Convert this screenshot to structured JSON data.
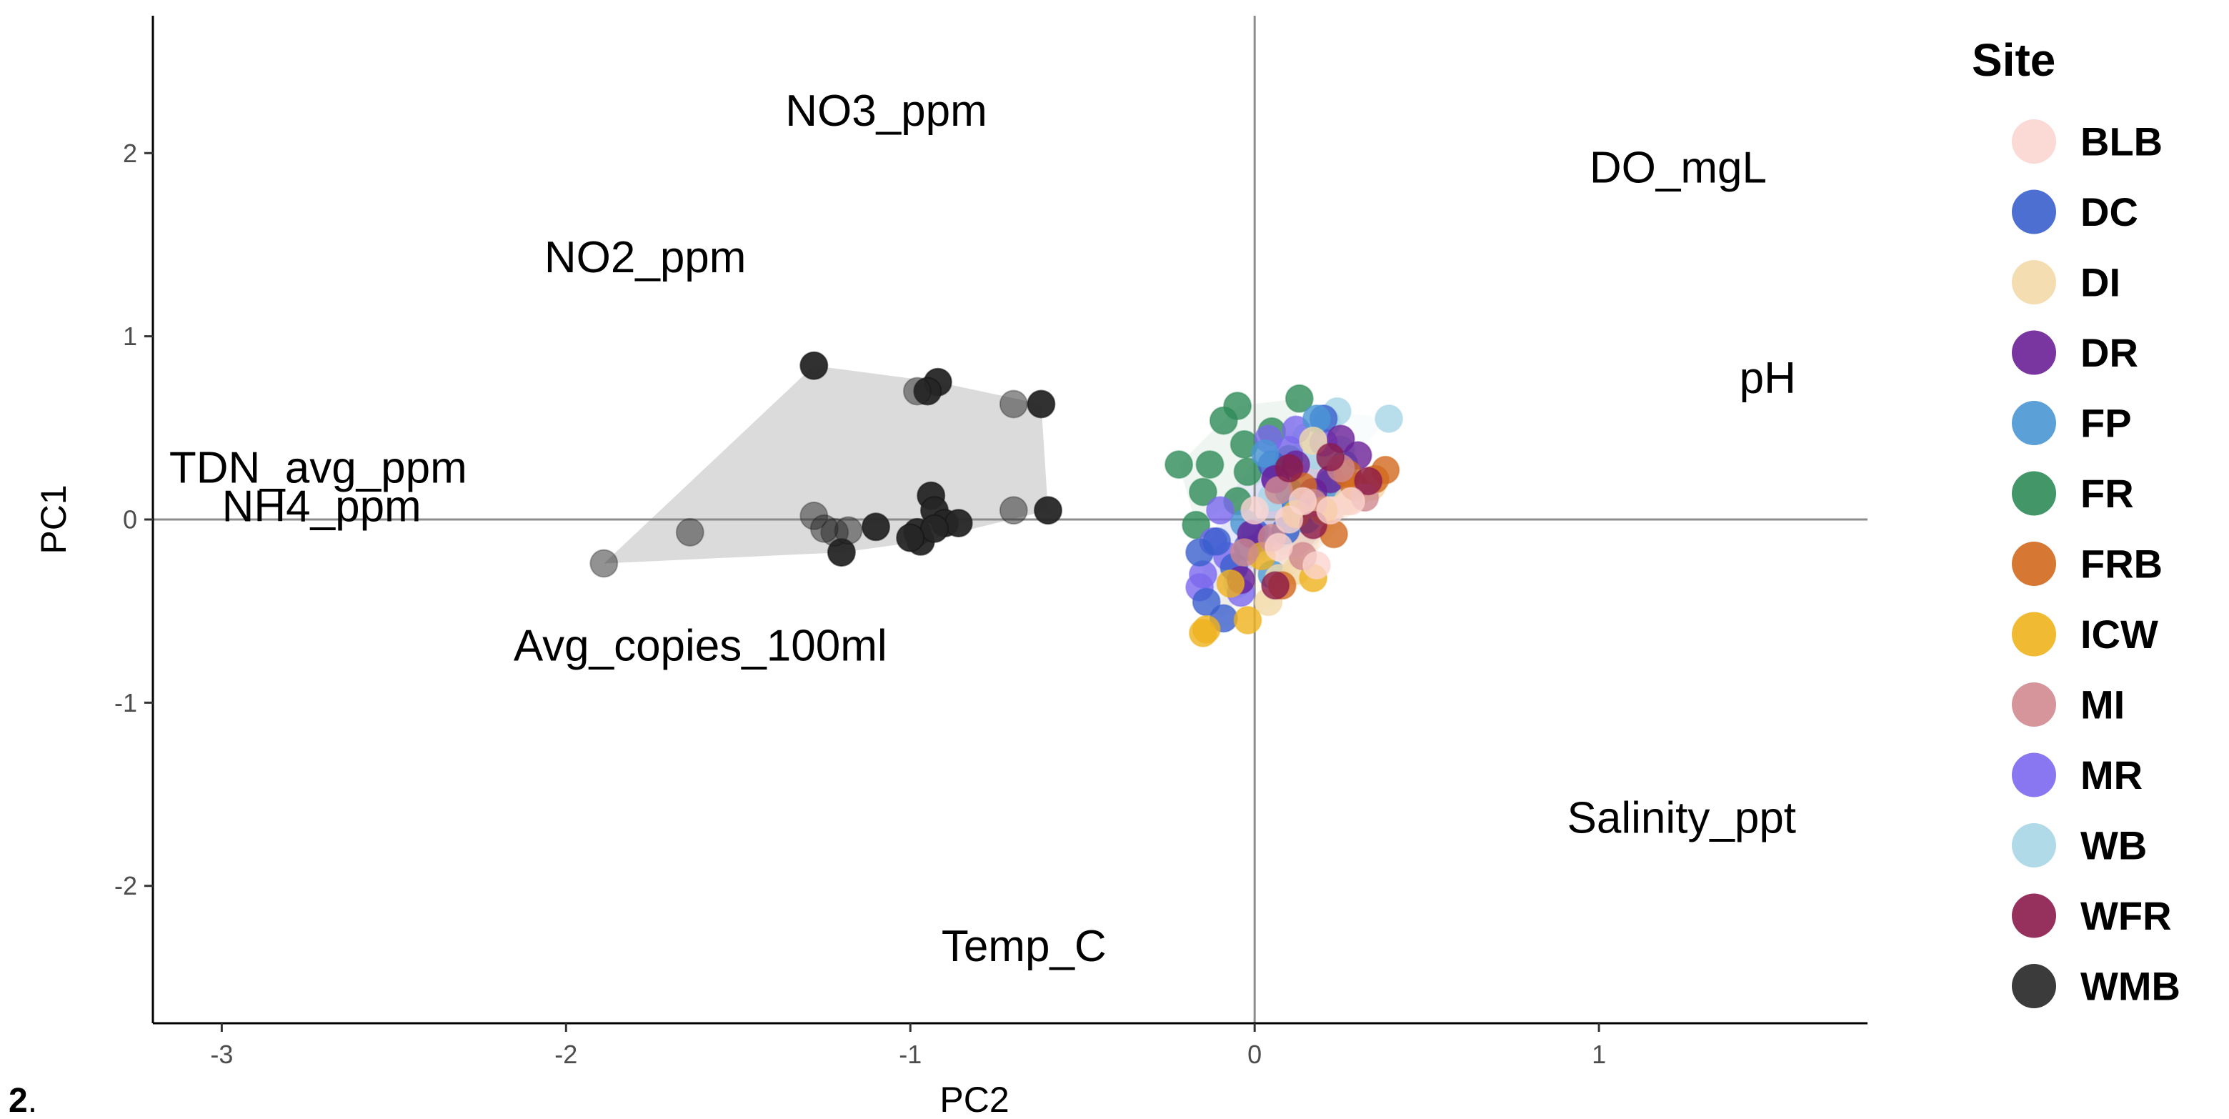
{
  "panel_label_bold": "2",
  "panel_label_rest": ".",
  "chart_data": {
    "type": "scatter",
    "xlabel": "PC2",
    "ylabel": "PC1",
    "xlim": [
      -3.2,
      1.78
    ],
    "ylim": [
      -2.75,
      2.75
    ],
    "xticks": [
      -3,
      -2,
      -1,
      0,
      1
    ],
    "yticks": [
      -2,
      -1,
      0,
      1,
      2
    ],
    "reference_lines": {
      "x": 0,
      "y": 0
    },
    "grid": false,
    "legend": {
      "title": "Site",
      "position": "right",
      "entries": [
        "BLB",
        "DC",
        "DI",
        "DR",
        "FP",
        "FR",
        "FRB",
        "ICW",
        "MI",
        "MR",
        "WB",
        "WFR",
        "WMB"
      ]
    },
    "colors": {
      "BLB": "#fbd5d0",
      "DC": "#3a5fcd",
      "DI": "#f3d9a8",
      "DR": "#6a1f96",
      "FP": "#4a96d4",
      "FR": "#2e8b57",
      "FRB": "#d2691e",
      "ICW": "#efb21d",
      "MI": "#d08a8f",
      "MR": "#7b68ee",
      "WB": "#a8d6e6",
      "WFR": "#8b1a4a",
      "WMB": "#262626"
    },
    "hull_color": "#bdbdbd",
    "variable_labels": [
      {
        "text": "NO3_ppm",
        "x": -1.07,
        "y": 2.23
      },
      {
        "text": "DO_mgL",
        "x": 1.23,
        "y": 1.92
      },
      {
        "text": "NO2_ppm",
        "x": -1.77,
        "y": 1.43
      },
      {
        "text": "pH",
        "x": 1.49,
        "y": 0.77
      },
      {
        "text": "TDN_avg_ppm",
        "x": -2.72,
        "y": 0.28
      },
      {
        "text": "NH4_ppm",
        "x": -2.71,
        "y": 0.07
      },
      {
        "text": "Avg_copies_100ml",
        "x": -1.61,
        "y": -0.69
      },
      {
        "text": "Salinity_ppt",
        "x": 1.24,
        "y": -1.63
      },
      {
        "text": "Temp_C",
        "x": -0.67,
        "y": -2.33
      }
    ],
    "series": [
      {
        "name": "WMB",
        "points": [
          [
            -1.28,
            0.84
          ],
          [
            -0.92,
            0.75
          ],
          [
            -0.95,
            0.7
          ],
          [
            -0.62,
            0.63
          ],
          [
            -0.94,
            0.13
          ],
          [
            -0.93,
            0.05
          ],
          [
            -1.1,
            -0.04
          ],
          [
            -0.98,
            -0.07
          ],
          [
            -0.97,
            -0.12
          ],
          [
            -0.9,
            -0.02
          ],
          [
            -0.86,
            -0.02
          ],
          [
            -1.2,
            -0.18
          ],
          [
            -0.6,
            0.05
          ],
          [
            -0.93,
            -0.05
          ],
          [
            -1.0,
            -0.1
          ]
        ]
      },
      {
        "name": "WMB",
        "opacity": 0.5,
        "points": [
          [
            -1.89,
            -0.24
          ],
          [
            -1.64,
            -0.07
          ],
          [
            -1.28,
            0.02
          ],
          [
            -1.22,
            -0.07
          ],
          [
            -1.18,
            -0.06
          ],
          [
            -0.7,
            0.63
          ],
          [
            -0.7,
            0.05
          ],
          [
            -0.98,
            0.7
          ],
          [
            -1.25,
            -0.05
          ]
        ]
      },
      {
        "name": "FR",
        "points": [
          [
            -0.22,
            0.3
          ],
          [
            -0.13,
            0.3
          ],
          [
            -0.09,
            0.54
          ],
          [
            -0.05,
            0.62
          ],
          [
            -0.03,
            0.41
          ],
          [
            0.13,
            0.66
          ],
          [
            -0.17,
            -0.03
          ],
          [
            -0.02,
            0.26
          ],
          [
            0.1,
            0.33
          ],
          [
            -0.15,
            0.15
          ],
          [
            -0.05,
            0.1
          ],
          [
            0.05,
            0.48
          ]
        ]
      },
      {
        "name": "WB",
        "points": [
          [
            0.39,
            0.55
          ],
          [
            0.24,
            0.59
          ],
          [
            0.21,
            0.53
          ],
          [
            0.15,
            0.45
          ],
          [
            0.05,
            0.12
          ],
          [
            0.1,
            0.2
          ],
          [
            -0.05,
            -0.35
          ],
          [
            0.18,
            0.35
          ],
          [
            0.08,
            -0.08
          ],
          [
            0.25,
            0.38
          ]
        ]
      },
      {
        "name": "MR",
        "points": [
          [
            0.12,
            0.49
          ],
          [
            0.04,
            0.44
          ],
          [
            0.1,
            0.38
          ],
          [
            -0.12,
            -0.12
          ],
          [
            -0.15,
            -0.3
          ],
          [
            -0.16,
            -0.37
          ],
          [
            -0.08,
            -0.2
          ],
          [
            0.02,
            -0.1
          ],
          [
            0.06,
            0.22
          ],
          [
            -0.1,
            0.05
          ],
          [
            0.16,
            0.06
          ],
          [
            0.2,
            0.42
          ],
          [
            -0.04,
            -0.4
          ]
        ]
      },
      {
        "name": "DC",
        "points": [
          [
            -0.16,
            -0.18
          ],
          [
            -0.11,
            -0.12
          ],
          [
            -0.09,
            -0.54
          ],
          [
            -0.06,
            -0.26
          ],
          [
            0.0,
            -0.07
          ],
          [
            0.05,
            0.3
          ],
          [
            0.09,
            -0.06
          ],
          [
            -0.02,
            -0.15
          ],
          [
            0.2,
            0.55
          ],
          [
            0.12,
            0.08
          ],
          [
            -0.14,
            -0.45
          ]
        ]
      },
      {
        "name": "FP",
        "points": [
          [
            0.03,
            0.36
          ],
          [
            0.1,
            0.15
          ],
          [
            0.22,
            0.2
          ],
          [
            -0.03,
            -0.02
          ],
          [
            0.15,
            0.0
          ],
          [
            0.26,
            0.3
          ],
          [
            0.05,
            -0.3
          ],
          [
            0.18,
            0.55
          ]
        ]
      },
      {
        "name": "DR",
        "points": [
          [
            0.25,
            0.44
          ],
          [
            0.22,
            0.22
          ],
          [
            0.06,
            0.22
          ],
          [
            -0.01,
            -0.08
          ],
          [
            -0.04,
            -0.33
          ],
          [
            0.17,
            0.15
          ],
          [
            0.12,
            0.3
          ],
          [
            0.3,
            0.35
          ]
        ]
      },
      {
        "name": "DI",
        "points": [
          [
            0.17,
            0.43
          ],
          [
            0.27,
            0.1
          ],
          [
            0.3,
            0.15
          ],
          [
            0.12,
            -0.28
          ],
          [
            0.07,
            -0.32
          ],
          [
            0.04,
            -0.45
          ],
          [
            0.2,
            0.04
          ],
          [
            0.34,
            0.18
          ]
        ]
      },
      {
        "name": "ICW",
        "points": [
          [
            -0.15,
            -0.62
          ],
          [
            -0.02,
            -0.55
          ],
          [
            0.12,
            0.03
          ],
          [
            0.17,
            -0.32
          ],
          [
            0.2,
            0.05
          ],
          [
            -0.07,
            -0.35
          ],
          [
            0.02,
            -0.2
          ],
          [
            -0.14,
            -0.6
          ]
        ]
      },
      {
        "name": "FRB",
        "points": [
          [
            0.38,
            0.27
          ],
          [
            0.27,
            0.25
          ],
          [
            0.23,
            -0.08
          ],
          [
            0.14,
            0.18
          ],
          [
            0.08,
            -0.36
          ],
          [
            0.29,
            0.18
          ],
          [
            0.35,
            0.22
          ]
        ]
      },
      {
        "name": "MI",
        "points": [
          [
            0.07,
            0.16
          ],
          [
            0.14,
            -0.2
          ],
          [
            0.17,
            0.09
          ],
          [
            0.32,
            0.12
          ],
          [
            0.25,
            0.28
          ],
          [
            0.05,
            -0.1
          ],
          [
            -0.03,
            -0.18
          ]
        ]
      },
      {
        "name": "WFR",
        "points": [
          [
            0.22,
            0.34
          ],
          [
            0.1,
            0.28
          ],
          [
            0.06,
            -0.36
          ],
          [
            0.17,
            -0.03
          ],
          [
            0.33,
            0.21
          ]
        ]
      },
      {
        "name": "BLB",
        "points": [
          [
            0.1,
            0.0
          ],
          [
            0.18,
            -0.25
          ],
          [
            0.07,
            -0.15
          ],
          [
            0.22,
            0.05
          ],
          [
            0.0,
            0.05
          ],
          [
            0.14,
            0.1
          ],
          [
            0.28,
            0.1
          ]
        ]
      }
    ]
  }
}
